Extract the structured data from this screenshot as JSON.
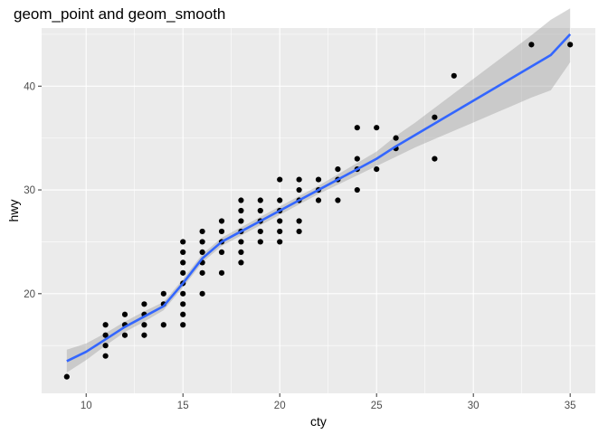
{
  "chart_data": {
    "type": "scatter",
    "title": "geom_point and geom_smooth",
    "xlabel": "cty",
    "ylabel": "hwy",
    "xlim": [
      7.7,
      36.3
    ],
    "ylim": [
      10.4,
      45.6
    ],
    "x_ticks": [
      10,
      15,
      20,
      25,
      30,
      35
    ],
    "y_ticks": [
      20,
      30,
      40
    ],
    "grid": true,
    "legend": "none",
    "colors": {
      "panel_background": "#EBEBEB",
      "grid_major": "#FFFFFF",
      "points": "#000000",
      "smooth_line": "#3366FF",
      "confidence_band": "#999999"
    },
    "points": [
      [
        9,
        12
      ],
      [
        11,
        14
      ],
      [
        11,
        15
      ],
      [
        11,
        16
      ],
      [
        11,
        17
      ],
      [
        12,
        16
      ],
      [
        12,
        17
      ],
      [
        12,
        18
      ],
      [
        13,
        16
      ],
      [
        13,
        17
      ],
      [
        13,
        18
      ],
      [
        13,
        19
      ],
      [
        14,
        17
      ],
      [
        14,
        19
      ],
      [
        14,
        20
      ],
      [
        15,
        17
      ],
      [
        15,
        18
      ],
      [
        15,
        19
      ],
      [
        15,
        20
      ],
      [
        15,
        21
      ],
      [
        15,
        22
      ],
      [
        15,
        23
      ],
      [
        15,
        24
      ],
      [
        15,
        25
      ],
      [
        16,
        20
      ],
      [
        16,
        22
      ],
      [
        16,
        23
      ],
      [
        16,
        24
      ],
      [
        16,
        25
      ],
      [
        16,
        26
      ],
      [
        17,
        22
      ],
      [
        17,
        24
      ],
      [
        17,
        25
      ],
      [
        17,
        26
      ],
      [
        17,
        27
      ],
      [
        18,
        23
      ],
      [
        18,
        24
      ],
      [
        18,
        25
      ],
      [
        18,
        26
      ],
      [
        18,
        27
      ],
      [
        18,
        28
      ],
      [
        18,
        29
      ],
      [
        19,
        25
      ],
      [
        19,
        26
      ],
      [
        19,
        27
      ],
      [
        19,
        28
      ],
      [
        19,
        29
      ],
      [
        20,
        25
      ],
      [
        20,
        26
      ],
      [
        20,
        27
      ],
      [
        20,
        28
      ],
      [
        20,
        29
      ],
      [
        20,
        31
      ],
      [
        21,
        26
      ],
      [
        21,
        27
      ],
      [
        21,
        29
      ],
      [
        21,
        30
      ],
      [
        21,
        31
      ],
      [
        22,
        29
      ],
      [
        22,
        30
      ],
      [
        22,
        31
      ],
      [
        23,
        29
      ],
      [
        23,
        31
      ],
      [
        23,
        32
      ],
      [
        24,
        30
      ],
      [
        24,
        32
      ],
      [
        24,
        33
      ],
      [
        24,
        36
      ],
      [
        25,
        32
      ],
      [
        25,
        36
      ],
      [
        26,
        34
      ],
      [
        26,
        35
      ],
      [
        28,
        33
      ],
      [
        28,
        37
      ],
      [
        29,
        41
      ],
      [
        33,
        44
      ],
      [
        35,
        44
      ]
    ],
    "smooth": {
      "method": "loess",
      "x": [
        9,
        10,
        11,
        12,
        13,
        14,
        15,
        16,
        17,
        18,
        19,
        20,
        21,
        22,
        23,
        24,
        25,
        26,
        27,
        28,
        29,
        30,
        31,
        32,
        33,
        34,
        35
      ],
      "y": [
        13.5,
        14.4,
        15.6,
        16.8,
        17.8,
        18.8,
        21.0,
        23.4,
        25.0,
        26.0,
        27.0,
        28.0,
        29.0,
        30.0,
        31.0,
        32.0,
        33.0,
        34.2,
        35.3,
        36.4,
        37.5,
        38.6,
        39.7,
        40.8,
        41.9,
        43.0,
        45.0
      ],
      "lower": [
        12.4,
        13.6,
        15.0,
        16.3,
        17.3,
        18.4,
        20.6,
        23.0,
        24.6,
        25.6,
        26.6,
        27.6,
        28.6,
        29.6,
        30.5,
        31.4,
        32.3,
        33.2,
        34.1,
        34.9,
        35.7,
        36.5,
        37.3,
        38.1,
        38.9,
        39.6,
        42.3
      ],
      "upper": [
        14.6,
        15.2,
        16.2,
        17.3,
        18.3,
        19.2,
        21.4,
        23.8,
        25.4,
        26.4,
        27.4,
        28.4,
        29.4,
        30.4,
        31.5,
        32.6,
        33.7,
        35.2,
        36.5,
        37.9,
        39.3,
        40.7,
        42.1,
        43.5,
        44.9,
        46.4,
        47.5
      ]
    }
  }
}
